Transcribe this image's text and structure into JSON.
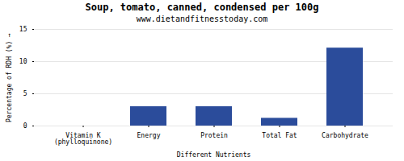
{
  "chart_data": {
    "type": "bar",
    "title": "Soup, tomato, canned, condensed per 100g",
    "subtitle": "www.dietandfitnesstoday.com",
    "xlabel": "Different Nutrients",
    "ylabel": "Percentage of RDH (%)",
    "categories": [
      "Vitamin K (phylloquinone)",
      "Energy",
      "Protein",
      "Total Fat",
      "Carbohydrate"
    ],
    "values": [
      0,
      3.0,
      3.0,
      1.2,
      12.1
    ],
    "color": "#2b4c9b",
    "ylim": [
      0,
      15
    ],
    "yticks": [
      0,
      5,
      10,
      15
    ],
    "grid": true
  }
}
